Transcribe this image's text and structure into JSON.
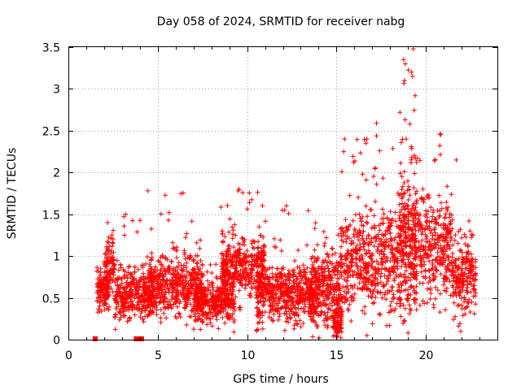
{
  "chart_data": {
    "type": "scatter",
    "title": "Day 058 of 2024, SRMTID for receiver nabg",
    "xlabel": "GPS time / hours",
    "ylabel": "SRMTID / TECUs",
    "xlim": [
      0,
      24
    ],
    "ylim": [
      0,
      3.5
    ],
    "x_ticks": [
      0,
      5,
      10,
      15,
      20
    ],
    "x_tick_labels": [
      "0",
      "5",
      "10",
      "15",
      "20"
    ],
    "y_ticks": [
      0,
      0.5,
      1,
      1.5,
      2,
      2.5,
      3,
      3.5
    ],
    "y_tick_labels": [
      "0",
      "0.5",
      "1",
      "1.5",
      "2",
      "2.5",
      "3",
      "3.5"
    ],
    "grid": true,
    "color": "#ff0000",
    "marker": "plus",
    "series": [
      {
        "name": "SRMTID",
        "segments": [
          {
            "x_start": 1.6,
            "x_end": 2.3,
            "baseline": 0.6,
            "spread": 0.22,
            "peak": 1.0
          },
          {
            "x_start": 2.0,
            "x_end": 2.6,
            "baseline": 0.9,
            "spread": 0.3,
            "peak": 1.4
          },
          {
            "x_start": 2.6,
            "x_end": 4.8,
            "baseline": 0.55,
            "spread": 0.25,
            "peak": 1.5
          },
          {
            "x_start": 4.4,
            "x_end": 7.5,
            "baseline": 0.65,
            "spread": 0.3,
            "peak": 1.78
          },
          {
            "x_start": 7.0,
            "x_end": 9.3,
            "baseline": 0.45,
            "spread": 0.2,
            "peak": 1.0
          },
          {
            "x_start": 8.5,
            "x_end": 11.0,
            "baseline": 0.85,
            "spread": 0.3,
            "peak": 1.8
          },
          {
            "x_start": 10.5,
            "x_end": 14.0,
            "baseline": 0.55,
            "spread": 0.3,
            "peak": 1.6
          },
          {
            "x_start": 13.5,
            "x_end": 15.3,
            "baseline": 0.6,
            "spread": 0.35,
            "peak": 1.4
          },
          {
            "x_start": 14.8,
            "x_end": 15.3,
            "baseline": 0.2,
            "spread": 0.15,
            "peak": 0.5
          },
          {
            "x_start": 15.2,
            "x_end": 17.0,
            "baseline": 0.9,
            "spread": 0.45,
            "peak": 2.4
          },
          {
            "x_start": 17.0,
            "x_end": 19.5,
            "baseline": 0.95,
            "spread": 0.5,
            "peak": 2.6
          },
          {
            "x_start": 18.5,
            "x_end": 19.5,
            "baseline": 1.3,
            "spread": 0.6,
            "peak": 3.48
          },
          {
            "x_start": 19.5,
            "x_end": 21.5,
            "baseline": 1.1,
            "spread": 0.5,
            "peak": 2.46
          },
          {
            "x_start": 21.5,
            "x_end": 22.8,
            "baseline": 0.75,
            "spread": 0.35,
            "peak": 1.5
          }
        ],
        "highlights": [
          {
            "x": 18.75,
            "y": 3.35
          },
          {
            "x": 18.85,
            "y": 3.3
          },
          {
            "x": 19.3,
            "y": 3.48
          },
          {
            "x": 19.2,
            "y": 3.2
          },
          {
            "x": 19.25,
            "y": 3.15
          },
          {
            "x": 18.8,
            "y": 3.1
          },
          {
            "x": 19.4,
            "y": 2.92
          },
          {
            "x": 18.55,
            "y": 2.72
          },
          {
            "x": 20.8,
            "y": 2.46
          },
          {
            "x": 15.45,
            "y": 2.4
          },
          {
            "x": 16.7,
            "y": 2.4
          },
          {
            "x": 16.65,
            "y": 2.35
          },
          {
            "x": 18.9,
            "y": 2.4
          },
          {
            "x": 15.4,
            "y": 2.25
          },
          {
            "x": 21.7,
            "y": 2.15
          },
          {
            "x": 4.45,
            "y": 1.78
          },
          {
            "x": 9.55,
            "y": 1.8
          },
          {
            "x": 9.5,
            "y": 1.78
          },
          {
            "x": 2.2,
            "y": 1.4
          },
          {
            "x": 3.1,
            "y": 1.47
          },
          {
            "x": 3.2,
            "y": 1.5
          },
          {
            "x": 12.2,
            "y": 1.6
          },
          {
            "x": 12.1,
            "y": 1.55
          },
          {
            "x": 14.9,
            "y": 0.05
          },
          {
            "x": 14.95,
            "y": 0.1
          },
          {
            "x": 16.7,
            "y": 0.05
          },
          {
            "x": 19.0,
            "y": 0.08
          },
          {
            "x": 21.95,
            "y": 0.1
          }
        ]
      }
    ],
    "zero_markers": [
      1.5,
      3.8,
      3.9,
      4.0,
      4.1
    ]
  }
}
